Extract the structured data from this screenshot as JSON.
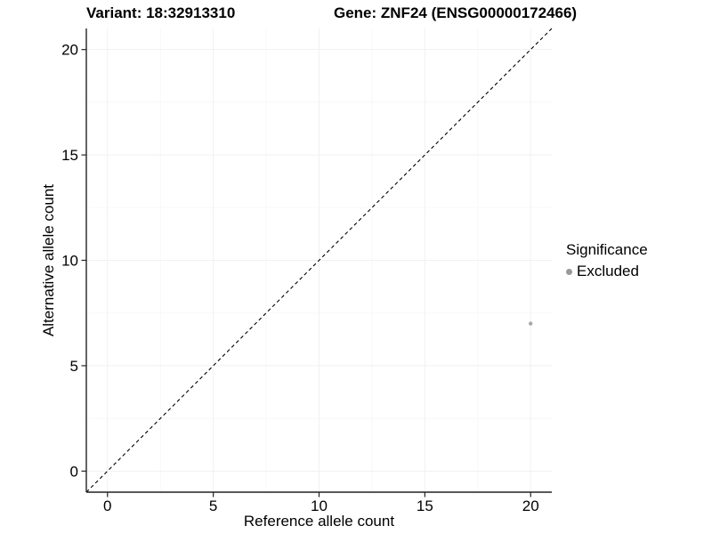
{
  "chart_data": {
    "type": "scatter",
    "title_variant": "Variant: 18:32913310",
    "title_gene": "Gene: ZNF24 (ENSG00000172466)",
    "xlabel": "Reference allele count",
    "ylabel": "Alternative allele count",
    "xlim": [
      -1,
      21
    ],
    "ylim": [
      -1,
      21
    ],
    "xticks": [
      0,
      5,
      10,
      15,
      20
    ],
    "yticks": [
      0,
      5,
      10,
      15,
      20
    ],
    "xminor": [
      2.5,
      7.5,
      12.5,
      17.5
    ],
    "yminor": [
      2.5,
      7.5,
      12.5,
      17.5
    ],
    "grid": "faint major and minor gridlines, white panel",
    "identity_line": {
      "style": "dashed",
      "color": "#000000",
      "from": [
        -1,
        -1
      ],
      "to": [
        21,
        21
      ]
    },
    "series": [
      {
        "name": "Excluded",
        "color": "#a8a8a8",
        "marker": "circle",
        "points": [
          {
            "x": 20,
            "y": 7
          }
        ]
      }
    ],
    "legend": {
      "position": "right",
      "title": "Significance",
      "items": [
        {
          "label": "Excluded",
          "color": "#999999",
          "marker": "circle"
        }
      ]
    },
    "axis_color": "#222222",
    "grid_major_color": "#f1f1f1",
    "grid_minor_color": "#f8f8f8",
    "text_color": "#000000"
  }
}
